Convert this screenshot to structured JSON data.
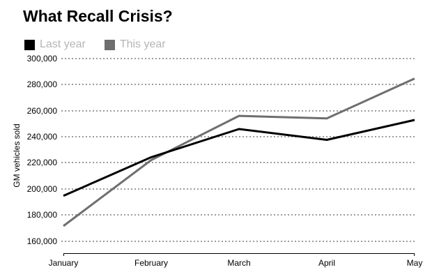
{
  "title": "What Recall Crisis?",
  "legend": {
    "items": [
      {
        "label": "Last year",
        "color": "#000000"
      },
      {
        "label": "This year",
        "color": "#6e6e6e"
      }
    ]
  },
  "y_axis_label": "GM vehicles sold",
  "chart_data": {
    "type": "line",
    "title": "What Recall Crisis?",
    "xlabel": "",
    "ylabel": "GM vehicles sold",
    "categories": [
      "January",
      "February",
      "March",
      "April",
      "May"
    ],
    "series": [
      {
        "name": "Last year",
        "color": "#000000",
        "values": [
          194699,
          224314,
          245950,
          237646,
          252894
        ]
      },
      {
        "name": "This year",
        "color": "#6e6e6e",
        "values": [
          171486,
          222104,
          256047,
          254076,
          284694
        ]
      }
    ],
    "ylim": [
      160000,
      300000
    ],
    "yticks": [
      160000,
      180000,
      200000,
      220000,
      240000,
      260000,
      280000,
      300000
    ],
    "ytick_labels": [
      "160,000",
      "180,000",
      "200,000",
      "220,000",
      "240,000",
      "260,000",
      "280,000",
      "300,000"
    ],
    "ytick_format": "comma",
    "grid": "horizontal-dotted",
    "gridline_color": "#9c9c9c",
    "line_width": 3,
    "legend_position": "top-left",
    "legend_text_color": "#b5b5b5"
  }
}
